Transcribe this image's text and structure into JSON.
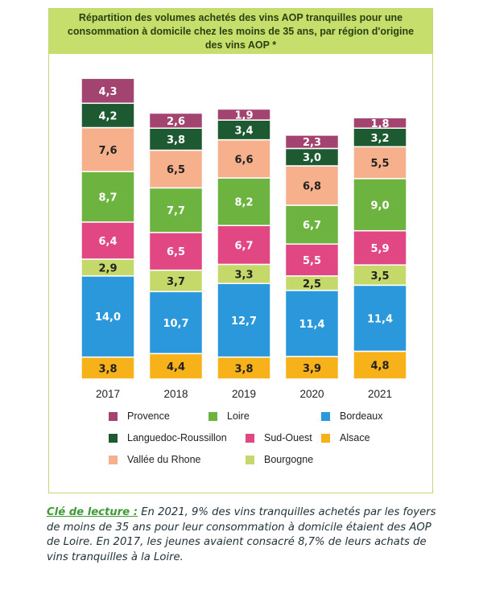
{
  "chart_data": {
    "type": "bar",
    "stacked": true,
    "title": "Répartition des volumes achetés des vins AOP tranquilles pour une consommation à domicile chez les moins de 35 ans, par région d'origine des vins AOP *",
    "categories": [
      "2017",
      "2018",
      "2019",
      "2020",
      "2021"
    ],
    "series": [
      {
        "name": "Alsace",
        "color": "#f7b21a",
        "values": [
          "3,8",
          "4,4",
          "3,8",
          "3,9",
          "4,8"
        ]
      },
      {
        "name": "Bordeaux",
        "color": "#2c98dc",
        "values": [
          "14,0",
          "10,7",
          "12,7",
          "11,4",
          "11,4"
        ]
      },
      {
        "name": "Bourgogne",
        "color": "#c5d96a",
        "values": [
          "2,9",
          "3,7",
          "3,3",
          "2,5",
          "3,5"
        ]
      },
      {
        "name": "Sud-Ouest",
        "color": "#e04783",
        "values": [
          "6,4",
          "6,5",
          "6,7",
          "5,5",
          "5,9"
        ]
      },
      {
        "name": "Loire",
        "color": "#6db33f",
        "values": [
          "8,7",
          "7,7",
          "8,2",
          "6,7",
          "9,0"
        ]
      },
      {
        "name": "Vallée du Rhone",
        "color": "#f6b08c",
        "values": [
          "7,6",
          "6,5",
          "6,6",
          "6,8",
          "5,5"
        ]
      },
      {
        "name": "Languedoc-Roussillon",
        "color": "#1e5a31",
        "values": [
          "4,2",
          "3,8",
          "3,4",
          "3,0",
          "3,2"
        ]
      },
      {
        "name": "Provence",
        "color": "#a34470",
        "values": [
          "4,3",
          "2,6",
          "1,9",
          "2,3",
          "1,8"
        ]
      }
    ],
    "legend_position": "bottom",
    "grid": false
  },
  "legend": [
    {
      "label": "Provence",
      "color": "#a34470"
    },
    {
      "label": "Loire",
      "color": "#6db33f"
    },
    {
      "label": "Bordeaux",
      "color": "#2c98dc"
    },
    {
      "label": "Languedoc-Roussillon",
      "color": "#1e5a31"
    },
    {
      "label": "Sud-Ouest",
      "color": "#e04783"
    },
    {
      "label": "Alsace",
      "color": "#f7b21a"
    },
    {
      "label": "Vallée du Rhone",
      "color": "#f6b08c"
    },
    {
      "label": "Bourgogne",
      "color": "#c5d96a"
    }
  ],
  "reading_key": {
    "label": "Clé de lecture :",
    "text": " En 2021, 9% des vins tranquilles achetés par les foyers de moins de 35 ans pour leur consommation à domicile étaient des AOP  de Loire. En 2017, les jeunes avaient consacré 8,7% de leurs achats de vins tranquilles à la Loire."
  }
}
